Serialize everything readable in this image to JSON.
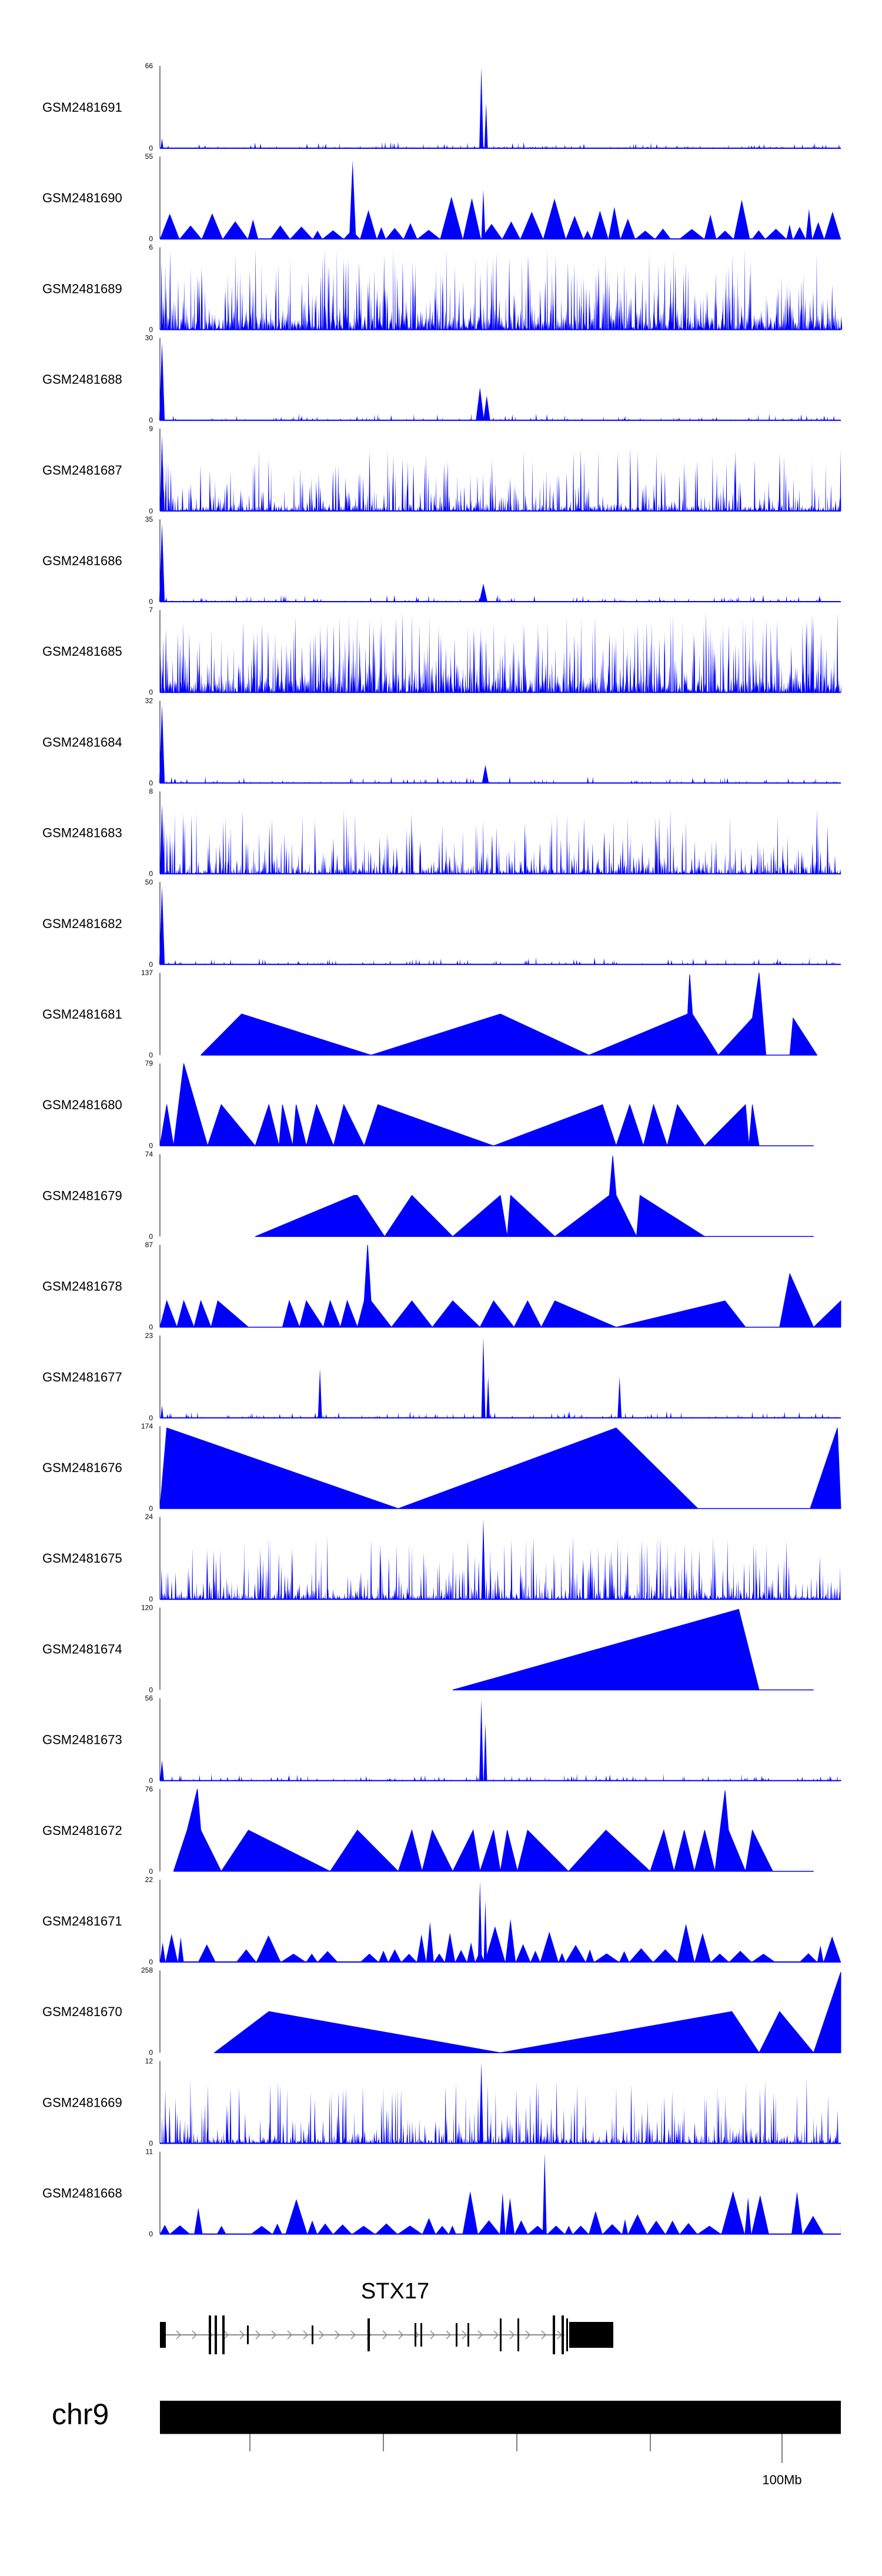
{
  "figure": {
    "chromosome": "chr9",
    "gene": {
      "name": "STX17",
      "exons": 21
    },
    "genome_axis": {
      "tick_count": 5,
      "labeled_tick": "100Mb"
    },
    "track_color": "#0000ff"
  },
  "chart_data": {
    "type": "area",
    "title": "",
    "xlabel": "",
    "ylabel": "",
    "ylim_min": 0,
    "tracks": [
      {
        "name": "GSM2481691",
        "ymax": 66,
        "pattern": "sparse",
        "peaks": [
          {
            "x": 0.472,
            "h": 0.98,
            "w": 0.006
          },
          {
            "x": 0.479,
            "h": 0.55,
            "w": 0.005
          },
          {
            "x": 0.003,
            "h": 0.12,
            "w": 0.004
          }
        ]
      },
      {
        "name": "GSM2481690",
        "ymax": 55,
        "pattern": "triangles",
        "peaks": [
          {
            "x": 0.283,
            "h": 0.95,
            "w": 0.01
          },
          {
            "x": 0.475,
            "h": 0.6,
            "w": 0.006
          }
        ]
      },
      {
        "name": "GSM2481689",
        "ymax": 6,
        "pattern": "dense",
        "peaks": []
      },
      {
        "name": "GSM2481688",
        "ymax": 30,
        "pattern": "sparse",
        "peaks": [
          {
            "x": 0.003,
            "h": 0.95,
            "w": 0.008
          },
          {
            "x": 0.47,
            "h": 0.4,
            "w": 0.012
          },
          {
            "x": 0.48,
            "h": 0.3,
            "w": 0.01
          }
        ]
      },
      {
        "name": "GSM2481687",
        "ymax": 9,
        "pattern": "medium",
        "peaks": [
          {
            "x": 0.003,
            "h": 0.92,
            "w": 0.006
          }
        ]
      },
      {
        "name": "GSM2481686",
        "ymax": 35,
        "pattern": "sparse",
        "peaks": [
          {
            "x": 0.003,
            "h": 0.95,
            "w": 0.008
          },
          {
            "x": 0.475,
            "h": 0.22,
            "w": 0.012
          }
        ]
      },
      {
        "name": "GSM2481685",
        "ymax": 7,
        "pattern": "dense",
        "peaks": []
      },
      {
        "name": "GSM2481684",
        "ymax": 32,
        "pattern": "sparse",
        "peaks": [
          {
            "x": 0.003,
            "h": 0.95,
            "w": 0.008
          },
          {
            "x": 0.478,
            "h": 0.22,
            "w": 0.01
          }
        ]
      },
      {
        "name": "GSM2481683",
        "ymax": 8,
        "pattern": "medium",
        "peaks": [
          {
            "x": 0.003,
            "h": 0.85,
            "w": 0.006
          }
        ]
      },
      {
        "name": "GSM2481682",
        "ymax": 50,
        "pattern": "sparse",
        "peaks": [
          {
            "x": 0.003,
            "h": 0.95,
            "w": 0.008
          }
        ]
      },
      {
        "name": "GSM2481681",
        "ymax": 137,
        "pattern": "polyline",
        "baseline_to": 0.96,
        "points": [
          [
            0.06,
            0
          ],
          [
            0.12,
            0.5
          ],
          [
            0.31,
            0
          ],
          [
            0.5,
            0.5
          ],
          [
            0.63,
            0
          ],
          [
            0.775,
            0.5
          ],
          [
            0.778,
            0.98
          ],
          [
            0.782,
            0.5
          ],
          [
            0.82,
            0
          ],
          [
            0.87,
            0.45
          ],
          [
            0.88,
            1.0
          ],
          [
            0.89,
            0
          ],
          [
            0.925,
            0
          ],
          [
            0.93,
            0.45
          ],
          [
            0.965,
            0
          ]
        ]
      },
      {
        "name": "GSM2481680",
        "ymax": 79,
        "pattern": "polyline",
        "baseline_to": 0.96,
        "points": [
          [
            0.0,
            0
          ],
          [
            0.01,
            0.5
          ],
          [
            0.02,
            0
          ],
          [
            0.035,
            1.0
          ],
          [
            0.07,
            0
          ],
          [
            0.09,
            0.5
          ],
          [
            0.14,
            0
          ],
          [
            0.16,
            0.5
          ],
          [
            0.175,
            0
          ],
          [
            0.18,
            0.5
          ],
          [
            0.195,
            0
          ],
          [
            0.2,
            0.5
          ],
          [
            0.215,
            0
          ],
          [
            0.23,
            0.5
          ],
          [
            0.255,
            0
          ],
          [
            0.27,
            0.5
          ],
          [
            0.3,
            0
          ],
          [
            0.32,
            0.5
          ],
          [
            0.49,
            0
          ],
          [
            0.65,
            0.5
          ],
          [
            0.67,
            0
          ],
          [
            0.69,
            0.5
          ],
          [
            0.71,
            0
          ],
          [
            0.725,
            0.5
          ],
          [
            0.745,
            0
          ],
          [
            0.76,
            0.5
          ],
          [
            0.8,
            0
          ],
          [
            0.86,
            0.5
          ],
          [
            0.865,
            0
          ],
          [
            0.87,
            0.5
          ],
          [
            0.88,
            0
          ]
        ]
      },
      {
        "name": "GSM2481679",
        "ymax": 74,
        "pattern": "polyline",
        "baseline_to": 0.96,
        "points": [
          [
            0.14,
            0
          ],
          [
            0.285,
            0.5
          ],
          [
            0.29,
            0.5
          ],
          [
            0.33,
            0
          ],
          [
            0.37,
            0.5
          ],
          [
            0.43,
            0
          ],
          [
            0.5,
            0.5
          ],
          [
            0.51,
            0
          ],
          [
            0.515,
            0.5
          ],
          [
            0.58,
            0
          ],
          [
            0.66,
            0.5
          ],
          [
            0.665,
            0.98
          ],
          [
            0.67,
            0.5
          ],
          [
            0.7,
            0
          ],
          [
            0.705,
            0.5
          ],
          [
            0.8,
            0
          ]
        ]
      },
      {
        "name": "GSM2481678",
        "ymax": 87,
        "pattern": "polyline",
        "baseline_to": 1.0,
        "points": [
          [
            0.0,
            0
          ],
          [
            0.01,
            0.32
          ],
          [
            0.025,
            0
          ],
          [
            0.035,
            0.32
          ],
          [
            0.05,
            0
          ],
          [
            0.06,
            0.32
          ],
          [
            0.075,
            0
          ],
          [
            0.085,
            0.32
          ],
          [
            0.13,
            0
          ],
          [
            0.18,
            0
          ],
          [
            0.19,
            0.32
          ],
          [
            0.205,
            0
          ],
          [
            0.215,
            0.32
          ],
          [
            0.24,
            0
          ],
          [
            0.25,
            0.32
          ],
          [
            0.265,
            0
          ],
          [
            0.275,
            0.32
          ],
          [
            0.29,
            0
          ],
          [
            0.3,
            0.32
          ],
          [
            0.305,
            1.0
          ],
          [
            0.31,
            0.32
          ],
          [
            0.34,
            0
          ],
          [
            0.37,
            0.32
          ],
          [
            0.4,
            0
          ],
          [
            0.43,
            0.32
          ],
          [
            0.47,
            0
          ],
          [
            0.49,
            0.32
          ],
          [
            0.52,
            0
          ],
          [
            0.54,
            0.32
          ],
          [
            0.56,
            0
          ],
          [
            0.58,
            0.32
          ],
          [
            0.67,
            0
          ],
          [
            0.83,
            0.32
          ],
          [
            0.86,
            0
          ],
          [
            0.91,
            0
          ],
          [
            0.925,
            0.65
          ],
          [
            0.96,
            0
          ],
          [
            1.0,
            0.32
          ]
        ]
      },
      {
        "name": "GSM2481677",
        "ymax": 23,
        "pattern": "sparse",
        "peaks": [
          {
            "x": 0.235,
            "h": 0.6,
            "w": 0.006
          },
          {
            "x": 0.475,
            "h": 0.98,
            "w": 0.006
          },
          {
            "x": 0.482,
            "h": 0.5,
            "w": 0.005
          },
          {
            "x": 0.675,
            "h": 0.5,
            "w": 0.006
          },
          {
            "x": 0.003,
            "h": 0.15,
            "w": 0.004
          }
        ]
      },
      {
        "name": "GSM2481676",
        "ymax": 174,
        "pattern": "polyline",
        "baseline_to": 1.0,
        "points": [
          [
            0.0,
            0
          ],
          [
            0.01,
            0.98
          ],
          [
            0.35,
            0
          ],
          [
            0.67,
            0.98
          ],
          [
            0.79,
            0
          ],
          [
            0.955,
            0
          ],
          [
            0.995,
            0.98
          ],
          [
            1.0,
            0
          ]
        ]
      },
      {
        "name": "GSM2481675",
        "ymax": 24,
        "pattern": "medium",
        "peaks": [
          {
            "x": 0.475,
            "h": 0.98,
            "w": 0.006
          }
        ]
      },
      {
        "name": "GSM2481674",
        "ymax": 120,
        "pattern": "polyline",
        "baseline_to": 0.96,
        "points": [
          [
            0.43,
            0
          ],
          [
            0.85,
            0.98
          ],
          [
            0.88,
            0
          ]
        ]
      },
      {
        "name": "GSM2481673",
        "ymax": 56,
        "pattern": "sparse",
        "peaks": [
          {
            "x": 0.472,
            "h": 0.98,
            "w": 0.006
          },
          {
            "x": 0.478,
            "h": 0.7,
            "w": 0.005
          },
          {
            "x": 0.003,
            "h": 0.25,
            "w": 0.006
          }
        ]
      },
      {
        "name": "GSM2481672",
        "ymax": 76,
        "pattern": "polyline",
        "baseline_to": 0.96,
        "points": [
          [
            0.02,
            0
          ],
          [
            0.04,
            0.5
          ],
          [
            0.055,
            1.0
          ],
          [
            0.06,
            0.5
          ],
          [
            0.09,
            0
          ],
          [
            0.13,
            0.5
          ],
          [
            0.25,
            0
          ],
          [
            0.29,
            0.5
          ],
          [
            0.35,
            0
          ],
          [
            0.37,
            0.5
          ],
          [
            0.385,
            0
          ],
          [
            0.4,
            0.5
          ],
          [
            0.43,
            0
          ],
          [
            0.46,
            0.5
          ],
          [
            0.47,
            0
          ],
          [
            0.49,
            0.5
          ],
          [
            0.5,
            0
          ],
          [
            0.51,
            0.5
          ],
          [
            0.525,
            0
          ],
          [
            0.54,
            0.5
          ],
          [
            0.6,
            0
          ],
          [
            0.655,
            0.5
          ],
          [
            0.72,
            0
          ],
          [
            0.74,
            0.5
          ],
          [
            0.755,
            0
          ],
          [
            0.77,
            0.5
          ],
          [
            0.785,
            0
          ],
          [
            0.8,
            0.5
          ],
          [
            0.815,
            0
          ],
          [
            0.83,
            0.98
          ],
          [
            0.835,
            0.5
          ],
          [
            0.86,
            0
          ],
          [
            0.87,
            0.5
          ],
          [
            0.9,
            0
          ]
        ]
      },
      {
        "name": "GSM2481671",
        "ymax": 22,
        "pattern": "triangles",
        "peaks": [
          {
            "x": 0.47,
            "h": 0.98,
            "w": 0.006
          },
          {
            "x": 0.478,
            "h": 0.75,
            "w": 0.005
          }
        ]
      },
      {
        "name": "GSM2481670",
        "ymax": 258,
        "pattern": "polyline",
        "baseline_to": 1.0,
        "points": [
          [
            0.08,
            0
          ],
          [
            0.16,
            0.5
          ],
          [
            0.5,
            0
          ],
          [
            0.84,
            0.5
          ],
          [
            0.88,
            0
          ],
          [
            0.91,
            0.5
          ],
          [
            0.96,
            0
          ],
          [
            1.0,
            0.98
          ]
        ]
      },
      {
        "name": "GSM2481669",
        "ymax": 12,
        "pattern": "medium",
        "peaks": [
          {
            "x": 0.472,
            "h": 0.98,
            "w": 0.006
          }
        ]
      },
      {
        "name": "GSM2481668",
        "ymax": 11,
        "pattern": "triangles",
        "peaks": [
          {
            "x": 0.565,
            "h": 0.98,
            "w": 0.006
          }
        ]
      }
    ]
  }
}
